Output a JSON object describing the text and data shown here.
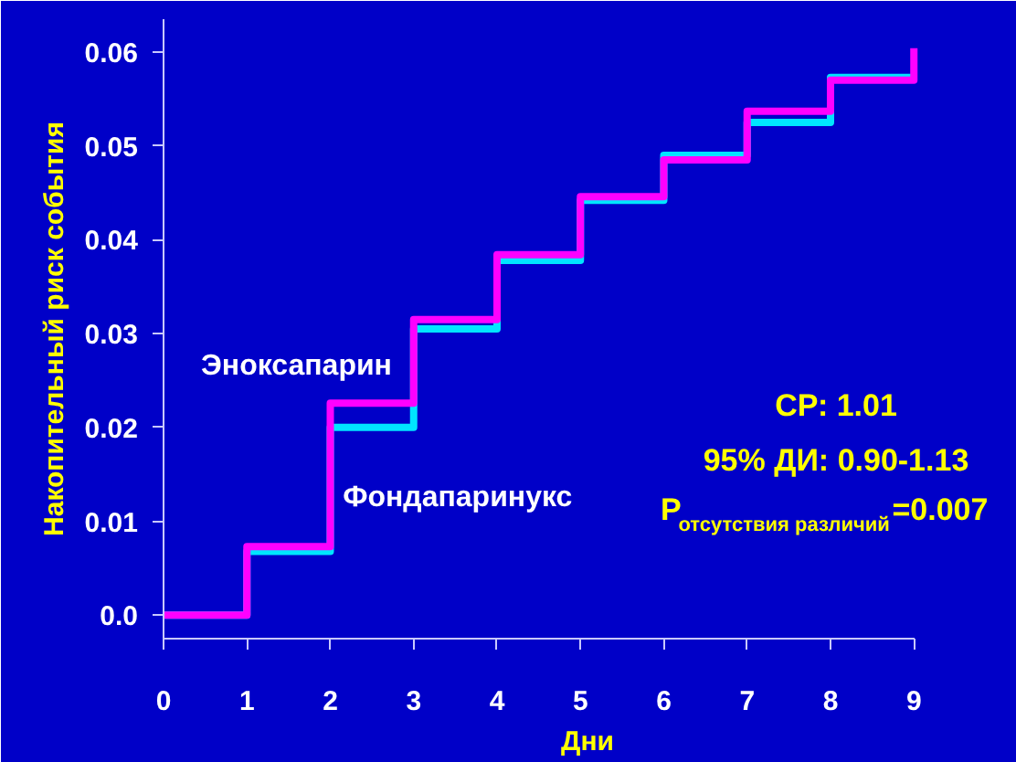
{
  "chart_data": {
    "type": "step",
    "x": [
      0,
      1,
      2,
      3,
      4,
      5,
      6,
      7,
      8,
      9
    ],
    "series": [
      {
        "name": "Фондапаринукс",
        "color": "#00e5ff",
        "values": [
          0,
          0.0068,
          0.02,
          0.0305,
          0.0378,
          0.0442,
          0.049,
          0.0525,
          0.0573,
          0.0573
        ]
      },
      {
        "name": "Эноксапарин",
        "color": "#ff00ff",
        "values": [
          0,
          0.0073,
          0.0226,
          0.0315,
          0.0384,
          0.0446,
          0.0485,
          0.0537,
          0.057,
          0.0604
        ]
      }
    ],
    "xlabel": "Дни",
    "ylabel": "Накопительный риск события",
    "xlim": [
      0,
      9
    ],
    "xticks": [
      0,
      1,
      2,
      3,
      4,
      5,
      6,
      7,
      8,
      9
    ],
    "ylim": [
      -0.0025,
      0.0635
    ],
    "yticks": [
      {
        "value": 0,
        "label": "0.0"
      },
      0.01,
      0.02,
      0.03,
      0.04,
      0.05,
      0.06
    ],
    "annotations": [
      "СР: 1.01",
      "95% ДИ: 0.90-1.13",
      "P$_{отсутствия различий}$=0.007"
    ],
    "grid": false,
    "line_style": "solid",
    "marker": "none"
  }
}
